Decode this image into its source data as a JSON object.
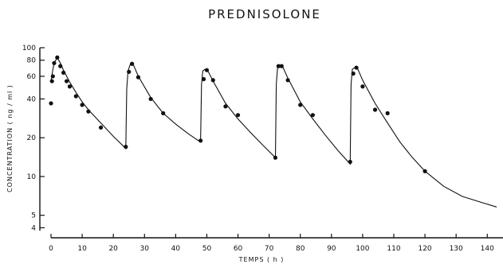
{
  "chart_data": {
    "type": "scatter",
    "title": "PREDNISOLONE",
    "xlabel": "TEMPS ( h )",
    "ylabel": "CONCENTRATION ( ng / ml )",
    "xlim": [
      0,
      143
    ],
    "ylim": [
      3.8,
      100
    ],
    "yscale": "log",
    "grid": false,
    "xticks": [
      0,
      10,
      20,
      30,
      40,
      50,
      60,
      70,
      80,
      90,
      100,
      110,
      120,
      130,
      140
    ],
    "yticks": [
      4,
      5,
      10,
      20,
      40,
      60,
      80,
      100
    ],
    "points": {
      "x": [
        0,
        0.3,
        0.6,
        1,
        2,
        3,
        4,
        5,
        6,
        8,
        10,
        12,
        16,
        24,
        25,
        26,
        28,
        32,
        36,
        48,
        49,
        50,
        52,
        56,
        60,
        72,
        73,
        74,
        76,
        80,
        84,
        96,
        97,
        98,
        100,
        104,
        108,
        120
      ],
      "y": [
        37,
        55,
        60,
        76,
        84,
        72,
        64,
        55,
        50,
        42,
        36,
        32,
        24,
        17,
        65,
        75,
        59,
        40,
        31,
        19,
        57,
        67,
        56,
        35,
        30,
        14,
        72,
        72,
        56,
        36,
        30,
        13,
        63,
        70,
        50,
        33,
        31,
        11
      ]
    },
    "curve": {
      "x": [
        0,
        0.5,
        1,
        2,
        3,
        4,
        6,
        8,
        10,
        12,
        16,
        20,
        24,
        24.3,
        24.7,
        25.5,
        26.5,
        28,
        32,
        36,
        40,
        44,
        48,
        48.3,
        48.7,
        49.5,
        50.5,
        52,
        56,
        60,
        64,
        68,
        72,
        72.3,
        72.7,
        73.5,
        74.5,
        76,
        80,
        84,
        88,
        92,
        96,
        96.3,
        96.7,
        97.5,
        98.5,
        100,
        104,
        108,
        112,
        116,
        120,
        126,
        132,
        138,
        143
      ],
      "y": [
        55,
        66,
        76,
        84,
        76,
        67,
        54,
        45,
        38,
        33,
        26,
        20.5,
        16.5,
        48,
        66,
        75,
        73,
        60,
        41,
        31,
        25.5,
        21.5,
        18.5,
        52,
        66,
        68,
        65,
        55,
        37,
        28,
        22,
        17.5,
        14,
        52,
        70,
        72,
        70,
        58,
        38,
        28,
        21,
        16,
        12.5,
        52,
        68,
        70,
        68,
        56,
        37,
        26,
        18.5,
        14,
        11,
        8.4,
        7,
        6.3,
        5.8
      ]
    }
  }
}
